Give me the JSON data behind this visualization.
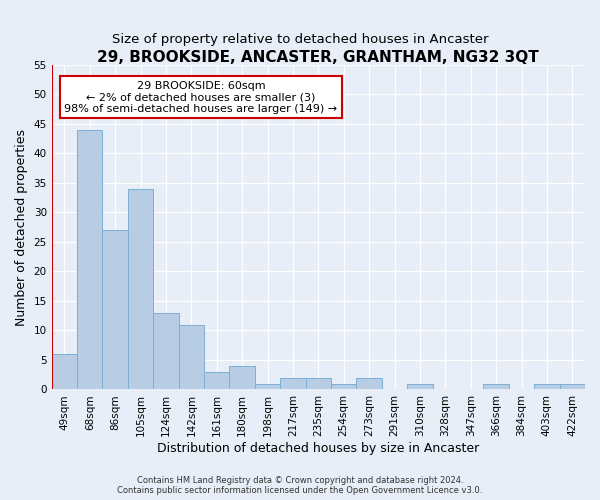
{
  "title": "29, BROOKSIDE, ANCASTER, GRANTHAM, NG32 3QT",
  "subtitle": "Size of property relative to detached houses in Ancaster",
  "xlabel": "Distribution of detached houses by size in Ancaster",
  "ylabel": "Number of detached properties",
  "footer_line1": "Contains HM Land Registry data © Crown copyright and database right 2024.",
  "footer_line2": "Contains public sector information licensed under the Open Government Licence v3.0.",
  "categories": [
    "49sqm",
    "68sqm",
    "86sqm",
    "105sqm",
    "124sqm",
    "142sqm",
    "161sqm",
    "180sqm",
    "198sqm",
    "217sqm",
    "235sqm",
    "254sqm",
    "273sqm",
    "291sqm",
    "310sqm",
    "328sqm",
    "347sqm",
    "366sqm",
    "384sqm",
    "403sqm",
    "422sqm"
  ],
  "values": [
    6,
    44,
    27,
    34,
    13,
    11,
    3,
    4,
    1,
    2,
    2,
    1,
    2,
    0,
    1,
    0,
    0,
    1,
    0,
    1,
    1
  ],
  "bar_color": "#b8cce4",
  "bar_edge_color": "#7bafd4",
  "highlight_color": "#cc0000",
  "annotation_text": "29 BROOKSIDE: 60sqm\n← 2% of detached houses are smaller (3)\n98% of semi-detached houses are larger (149) →",
  "annotation_box_color": "#ffffff",
  "annotation_box_edge": "#cc0000",
  "ylim": [
    0,
    55
  ],
  "yticks": [
    0,
    5,
    10,
    15,
    20,
    25,
    30,
    35,
    40,
    45,
    50,
    55
  ],
  "background_color": "#e8eef7",
  "grid_color": "#ffffff",
  "title_fontsize": 11,
  "subtitle_fontsize": 9.5,
  "xlabel_fontsize": 9,
  "ylabel_fontsize": 9,
  "tick_fontsize": 7.5,
  "annotation_fontsize": 8,
  "footer_fontsize": 6
}
